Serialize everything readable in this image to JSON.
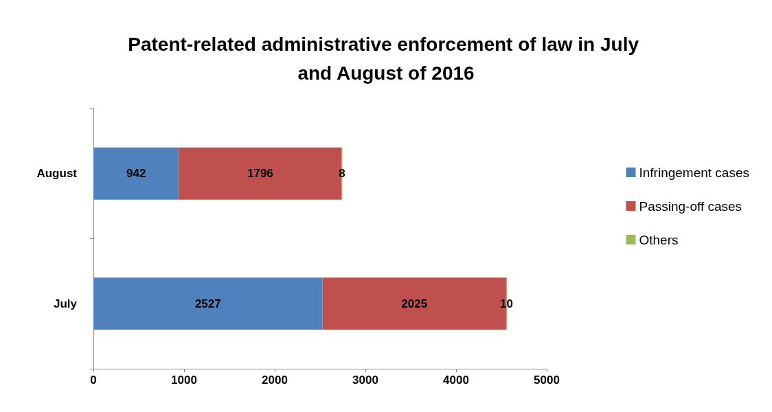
{
  "chart_data": {
    "type": "bar",
    "title": "Patent-related administrative enforcement of law in July and August of 2016",
    "orientation": "horizontal",
    "stacked": true,
    "categories": [
      "August",
      "July"
    ],
    "series": [
      {
        "name": "Infringement cases",
        "color": "#4f81bd",
        "values": [
          942,
          2527
        ]
      },
      {
        "name": "Passing-off cases",
        "color": "#c0504d",
        "values": [
          1796,
          2025
        ]
      },
      {
        "name": "Others",
        "color": "#9bbb59",
        "values": [
          8,
          10
        ]
      }
    ],
    "xlim": [
      0,
      5000
    ],
    "xticks": [
      0,
      1000,
      2000,
      3000,
      4000,
      5000
    ],
    "grid": false,
    "legend": "right",
    "data_labels": true
  }
}
